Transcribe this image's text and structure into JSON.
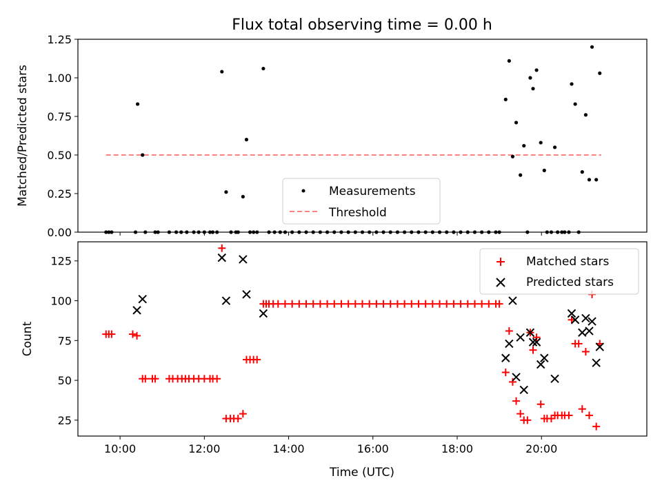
{
  "title": "Flux total observing time = 0.00 h",
  "colors": {
    "measurement": "#000000",
    "threshold": "#ff7f7f",
    "matched": "#ff0000",
    "predicted": "#000000"
  },
  "chart_data": [
    {
      "type": "scatter",
      "ylabel": "Matched/Predicted stars",
      "xlim": [
        "09:00",
        "22:30"
      ],
      "ylim": [
        0,
        1.25
      ],
      "yticks": [
        "0.00",
        "0.25",
        "0.50",
        "0.75",
        "1.00",
        "1.25"
      ],
      "legend": {
        "position": "lower-center",
        "entries": [
          "Measurements",
          "Threshold"
        ]
      },
      "threshold": {
        "y": 0.5,
        "x_start": "09:40",
        "x_end": "21:25"
      },
      "series": [
        {
          "name": "Measurements",
          "marker": "dot",
          "points": [
            [
              "09:40",
              0
            ],
            [
              "09:44",
              0
            ],
            [
              "09:48",
              0
            ],
            [
              "10:22",
              0
            ],
            [
              "10:25",
              0.83
            ],
            [
              "10:32",
              0.5
            ],
            [
              "10:36",
              0
            ],
            [
              "10:50",
              0
            ],
            [
              "10:54",
              0
            ],
            [
              "11:10",
              0
            ],
            [
              "11:20",
              0
            ],
            [
              "11:27",
              0
            ],
            [
              "11:35",
              0
            ],
            [
              "11:45",
              0
            ],
            [
              "11:52",
              0
            ],
            [
              "12:00",
              0
            ],
            [
              "12:08",
              0
            ],
            [
              "12:12",
              0
            ],
            [
              "12:18",
              0
            ],
            [
              "12:25",
              1.04
            ],
            [
              "12:31",
              0.26
            ],
            [
              "12:38",
              0
            ],
            [
              "12:45",
              0
            ],
            [
              "12:48",
              0
            ],
            [
              "12:55",
              0.23
            ],
            [
              "13:00",
              0.6
            ],
            [
              "13:05",
              0
            ],
            [
              "13:10",
              0
            ],
            [
              "13:15",
              0
            ],
            [
              "13:24",
              1.06
            ],
            [
              "13:32",
              0
            ],
            [
              "13:40",
              0
            ],
            [
              "13:48",
              0
            ],
            [
              "13:55",
              0
            ],
            [
              "14:05",
              0
            ],
            [
              "14:15",
              0
            ],
            [
              "14:25",
              0
            ],
            [
              "14:35",
              0
            ],
            [
              "14:45",
              0
            ],
            [
              "14:55",
              0
            ],
            [
              "15:05",
              0
            ],
            [
              "15:15",
              0
            ],
            [
              "15:25",
              0
            ],
            [
              "15:35",
              0
            ],
            [
              "15:45",
              0
            ],
            [
              "15:55",
              0
            ],
            [
              "16:05",
              0
            ],
            [
              "16:15",
              0
            ],
            [
              "16:25",
              0
            ],
            [
              "16:35",
              0
            ],
            [
              "16:45",
              0
            ],
            [
              "16:55",
              0
            ],
            [
              "17:05",
              0
            ],
            [
              "17:15",
              0
            ],
            [
              "17:25",
              0
            ],
            [
              "17:35",
              0
            ],
            [
              "17:45",
              0
            ],
            [
              "17:55",
              0
            ],
            [
              "18:05",
              0
            ],
            [
              "18:15",
              0
            ],
            [
              "18:25",
              0
            ],
            [
              "18:35",
              0
            ],
            [
              "18:45",
              0
            ],
            [
              "18:55",
              0
            ],
            [
              "19:00",
              0
            ],
            [
              "19:09",
              0.86
            ],
            [
              "19:14",
              1.11
            ],
            [
              "19:19",
              0.49
            ],
            [
              "19:24",
              0.71
            ],
            [
              "19:30",
              0.37
            ],
            [
              "19:35",
              0.56
            ],
            [
              "19:40",
              0
            ],
            [
              "19:44",
              1.0
            ],
            [
              "19:48",
              0.93
            ],
            [
              "19:53",
              1.05
            ],
            [
              "19:59",
              0.58
            ],
            [
              "20:04",
              0.4
            ],
            [
              "20:08",
              0
            ],
            [
              "20:14",
              0
            ],
            [
              "20:19",
              0.55
            ],
            [
              "20:23",
              0
            ],
            [
              "20:29",
              0
            ],
            [
              "20:33",
              0
            ],
            [
              "20:39",
              0
            ],
            [
              "20:43",
              0.96
            ],
            [
              "20:48",
              0.83
            ],
            [
              "20:53",
              0
            ],
            [
              "20:58",
              0.39
            ],
            [
              "21:03",
              0.76
            ],
            [
              "21:08",
              0.34
            ],
            [
              "21:12",
              1.2
            ],
            [
              "21:18",
              0.34
            ],
            [
              "21:23",
              1.03
            ]
          ]
        }
      ]
    },
    {
      "type": "scatter",
      "xlabel": "Time (UTC)",
      "ylabel": "Count",
      "xlim": [
        "09:00",
        "22:30"
      ],
      "ylim": [
        15,
        137
      ],
      "xticks": [
        "10:00",
        "12:00",
        "14:00",
        "16:00",
        "18:00",
        "20:00"
      ],
      "yticks": [
        "25",
        "50",
        "75",
        "100",
        "125"
      ],
      "legend": {
        "position": "top-right",
        "entries": [
          "Matched stars",
          "Predicted stars"
        ]
      },
      "series": [
        {
          "name": "Matched stars",
          "marker": "plus",
          "points": [
            [
              "09:40",
              79
            ],
            [
              "09:44",
              79
            ],
            [
              "09:48",
              79
            ],
            [
              "10:18",
              79
            ],
            [
              "10:24",
              78
            ],
            [
              "10:32",
              51
            ],
            [
              "10:36",
              51
            ],
            [
              "10:46",
              51
            ],
            [
              "10:50",
              51
            ],
            [
              "11:10",
              51
            ],
            [
              "11:15",
              51
            ],
            [
              "11:22",
              51
            ],
            [
              "11:28",
              51
            ],
            [
              "11:33",
              51
            ],
            [
              "11:38",
              51
            ],
            [
              "11:45",
              51
            ],
            [
              "11:52",
              51
            ],
            [
              "12:00",
              51
            ],
            [
              "12:08",
              51
            ],
            [
              "12:12",
              51
            ],
            [
              "12:18",
              51
            ],
            [
              "12:25",
              133
            ],
            [
              "12:31",
              26
            ],
            [
              "12:37",
              26
            ],
            [
              "12:42",
              26
            ],
            [
              "12:48",
              26
            ],
            [
              "12:55",
              29
            ],
            [
              "13:00",
              63
            ],
            [
              "13:05",
              63
            ],
            [
              "13:10",
              63
            ],
            [
              "13:15",
              63
            ],
            [
              "13:24",
              98
            ],
            [
              "13:28",
              98
            ],
            [
              "13:32",
              98
            ],
            [
              "13:38",
              98
            ],
            [
              "13:45",
              98
            ],
            [
              "13:55",
              98
            ],
            [
              "14:05",
              98
            ],
            [
              "14:15",
              98
            ],
            [
              "14:25",
              98
            ],
            [
              "14:35",
              98
            ],
            [
              "14:45",
              98
            ],
            [
              "14:55",
              98
            ],
            [
              "15:05",
              98
            ],
            [
              "15:15",
              98
            ],
            [
              "15:25",
              98
            ],
            [
              "15:35",
              98
            ],
            [
              "15:45",
              98
            ],
            [
              "15:55",
              98
            ],
            [
              "16:05",
              98
            ],
            [
              "16:15",
              98
            ],
            [
              "16:25",
              98
            ],
            [
              "16:35",
              98
            ],
            [
              "16:45",
              98
            ],
            [
              "16:55",
              98
            ],
            [
              "17:05",
              98
            ],
            [
              "17:15",
              98
            ],
            [
              "17:25",
              98
            ],
            [
              "17:35",
              98
            ],
            [
              "17:45",
              98
            ],
            [
              "17:55",
              98
            ],
            [
              "18:05",
              98
            ],
            [
              "18:15",
              98
            ],
            [
              "18:25",
              98
            ],
            [
              "18:35",
              98
            ],
            [
              "18:45",
              98
            ],
            [
              "18:55",
              98
            ],
            [
              "19:00",
              98
            ],
            [
              "19:09",
              55
            ],
            [
              "19:14",
              81
            ],
            [
              "19:19",
              49
            ],
            [
              "19:24",
              37
            ],
            [
              "19:30",
              29
            ],
            [
              "19:35",
              25
            ],
            [
              "19:40",
              25
            ],
            [
              "19:44",
              80
            ],
            [
              "19:48",
              69
            ],
            [
              "19:53",
              77
            ],
            [
              "19:59",
              35
            ],
            [
              "20:04",
              26
            ],
            [
              "20:08",
              26
            ],
            [
              "20:14",
              26
            ],
            [
              "20:19",
              28
            ],
            [
              "20:23",
              28
            ],
            [
              "20:29",
              28
            ],
            [
              "20:33",
              28
            ],
            [
              "20:39",
              28
            ],
            [
              "20:43",
              88
            ],
            [
              "20:48",
              73
            ],
            [
              "20:53",
              73
            ],
            [
              "20:58",
              32
            ],
            [
              "21:03",
              68
            ],
            [
              "21:08",
              28
            ],
            [
              "21:12",
              104
            ],
            [
              "21:18",
              21
            ],
            [
              "21:23",
              73
            ]
          ]
        },
        {
          "name": "Predicted stars",
          "marker": "cross",
          "points": [
            [
              "10:24",
              94
            ],
            [
              "10:32",
              101
            ],
            [
              "12:25",
              127
            ],
            [
              "12:31",
              100
            ],
            [
              "12:55",
              126
            ],
            [
              "13:00",
              104
            ],
            [
              "13:24",
              92
            ],
            [
              "19:09",
              64
            ],
            [
              "19:14",
              73
            ],
            [
              "19:19",
              100
            ],
            [
              "19:24",
              52
            ],
            [
              "19:30",
              77
            ],
            [
              "19:35",
              44
            ],
            [
              "19:44",
              80
            ],
            [
              "19:48",
              74
            ],
            [
              "19:53",
              74
            ],
            [
              "19:59",
              60
            ],
            [
              "20:04",
              64
            ],
            [
              "20:19",
              51
            ],
            [
              "20:43",
              92
            ],
            [
              "20:48",
              88
            ],
            [
              "20:58",
              80
            ],
            [
              "21:03",
              89
            ],
            [
              "21:08",
              81
            ],
            [
              "21:12",
              87
            ],
            [
              "21:18",
              61
            ],
            [
              "21:23",
              71
            ]
          ]
        }
      ]
    }
  ]
}
